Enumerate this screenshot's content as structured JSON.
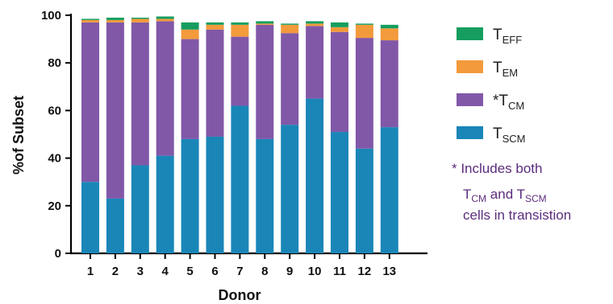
{
  "chart_data": {
    "type": "bar",
    "stacked": true,
    "title": "",
    "xlabel": "Donor",
    "ylabel": "%of Subset",
    "ylim": [
      0,
      100
    ],
    "yticks": [
      0,
      20,
      40,
      60,
      80,
      100
    ],
    "categories": [
      "1",
      "2",
      "3",
      "4",
      "5",
      "6",
      "7",
      "8",
      "9",
      "10",
      "11",
      "12",
      "13"
    ],
    "legend_position": "right",
    "grid": false,
    "series": [
      {
        "id": "tscm",
        "name": "T",
        "name_sub": "SCM",
        "color": "#1a86b8",
        "values": [
          30,
          23,
          37,
          41,
          48,
          49,
          62,
          48,
          54,
          65,
          51,
          44,
          53
        ]
      },
      {
        "id": "tcm",
        "name": "*T",
        "name_sub": "CM",
        "color": "#8158a8",
        "values": [
          67,
          74,
          60,
          56.5,
          42,
          45,
          29,
          48,
          38.5,
          30.5,
          42,
          46.5,
          36.5
        ]
      },
      {
        "id": "tem",
        "name": "T",
        "name_sub": "EM",
        "color": "#f39a3c",
        "values": [
          1,
          1,
          1.5,
          1,
          4,
          2,
          5,
          0.5,
          3.5,
          1,
          2,
          5.5,
          5
        ]
      },
      {
        "id": "teff",
        "name": "T",
        "name_sub": "EFF",
        "color": "#159e5f",
        "values": [
          0.5,
          1,
          0.5,
          1,
          3,
          1,
          1,
          1,
          0.5,
          1,
          2,
          0.5,
          1.5
        ]
      }
    ],
    "legend_order": [
      "teff",
      "tem",
      "tcm",
      "tscm"
    ],
    "annotation": {
      "line1": "* Includes both",
      "line2_t1": "T",
      "line2_sub1": "CM",
      "line2_mid": " and ",
      "line2_t2": "T",
      "line2_sub2": "SCM",
      "line3": "cells in transistion"
    }
  }
}
